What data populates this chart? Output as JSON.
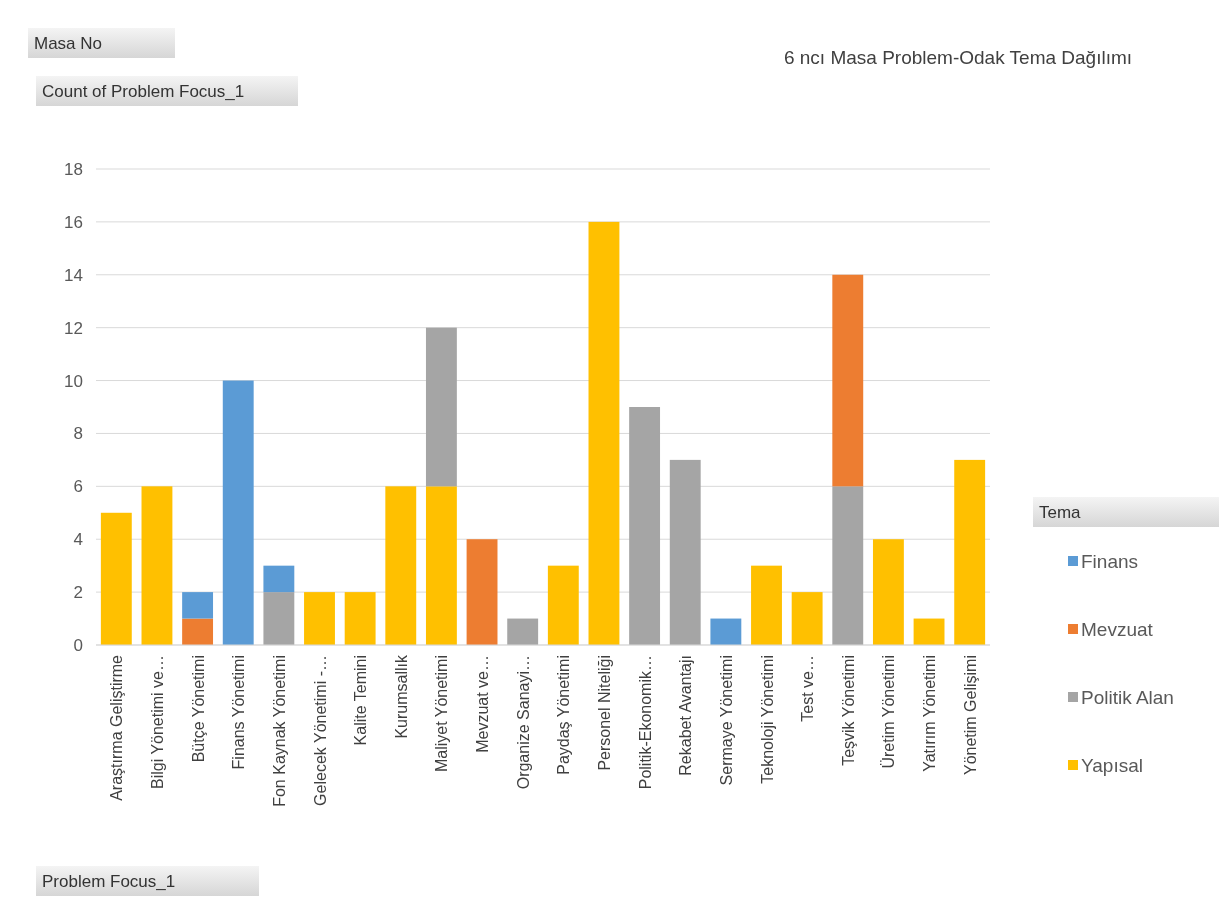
{
  "chart_data": {
    "type": "bar",
    "stacked": true,
    "title": "6 ncı Masa Problem-Odak Tema Dağılımı",
    "ylabel": "Count of Problem Focus_1",
    "xlabel": "Problem Focus_1",
    "legend_title": "Tema",
    "annotations": [
      "Masa No"
    ],
    "categories": [
      "Araştırma Geliştirme",
      "Bilgi Yönetimi ve…",
      "Bütçe Yönetimi",
      "Finans Yönetimi",
      "Fon Kaynak Yönetimi",
      "Gelecek Yönetimi -…",
      "Kalite Temini",
      "Kurumsallık",
      "Maliyet Yönetimi",
      "Mevzuat ve…",
      "Organize Sanayi…",
      "Paydaş Yönetimi",
      "Personel Niteliği",
      "Politik-Ekonomik…",
      "Rekabet Avantajı",
      "Sermaye Yönetimi",
      "Teknoloji Yönetimi",
      "Test ve…",
      "Teşvik Yönetimi",
      "Üretim Yönetimi",
      "Yatırım Yönetimi",
      "Yönetim Gelişimi"
    ],
    "series": [
      {
        "name": "Yapısal",
        "color": "#ffc000",
        "values": [
          5,
          6,
          null,
          null,
          null,
          2,
          2,
          6,
          6,
          null,
          null,
          3,
          16,
          null,
          null,
          null,
          3,
          2,
          null,
          4,
          1,
          7
        ]
      },
      {
        "name": "Politik Alan",
        "color": "#a5a5a5",
        "values": [
          null,
          null,
          null,
          null,
          2,
          null,
          null,
          null,
          6,
          null,
          1,
          null,
          null,
          9,
          7,
          null,
          null,
          null,
          6,
          null,
          null,
          null
        ]
      },
      {
        "name": "Mevzuat",
        "color": "#ed7d31",
        "values": [
          null,
          null,
          1,
          null,
          null,
          null,
          null,
          null,
          null,
          4,
          null,
          null,
          null,
          null,
          null,
          null,
          null,
          null,
          8,
          null,
          null,
          null
        ]
      },
      {
        "name": "Finans",
        "color": "#5b9bd5",
        "values": [
          null,
          null,
          1,
          10,
          1,
          null,
          null,
          null,
          null,
          null,
          null,
          null,
          null,
          null,
          null,
          1,
          null,
          null,
          null,
          null,
          null,
          null
        ]
      }
    ],
    "ylim": [
      0,
      18
    ],
    "yticks": [
      0,
      2,
      4,
      6,
      8,
      10,
      12,
      14,
      16,
      18
    ],
    "grid": "y",
    "legend": "right"
  }
}
